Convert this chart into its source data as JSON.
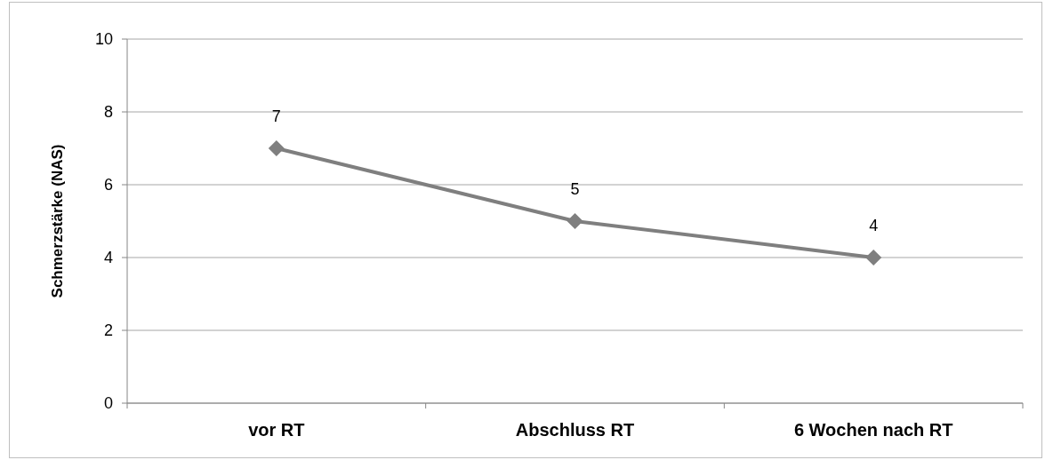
{
  "chart_data": {
    "type": "line",
    "ylabel": "Schmerzstärke (NAS)",
    "categories": [
      "vor RT",
      "Abschluss RT",
      "6 Wochen nach RT"
    ],
    "series": [
      {
        "color": "#7f7f7f",
        "values": [
          7,
          5,
          4
        ]
      }
    ],
    "ylim": [
      0,
      10
    ],
    "yticks": [
      0,
      2,
      4,
      6,
      8,
      10
    ],
    "grid": "y",
    "marker": "diamond",
    "data_labels": true
  }
}
